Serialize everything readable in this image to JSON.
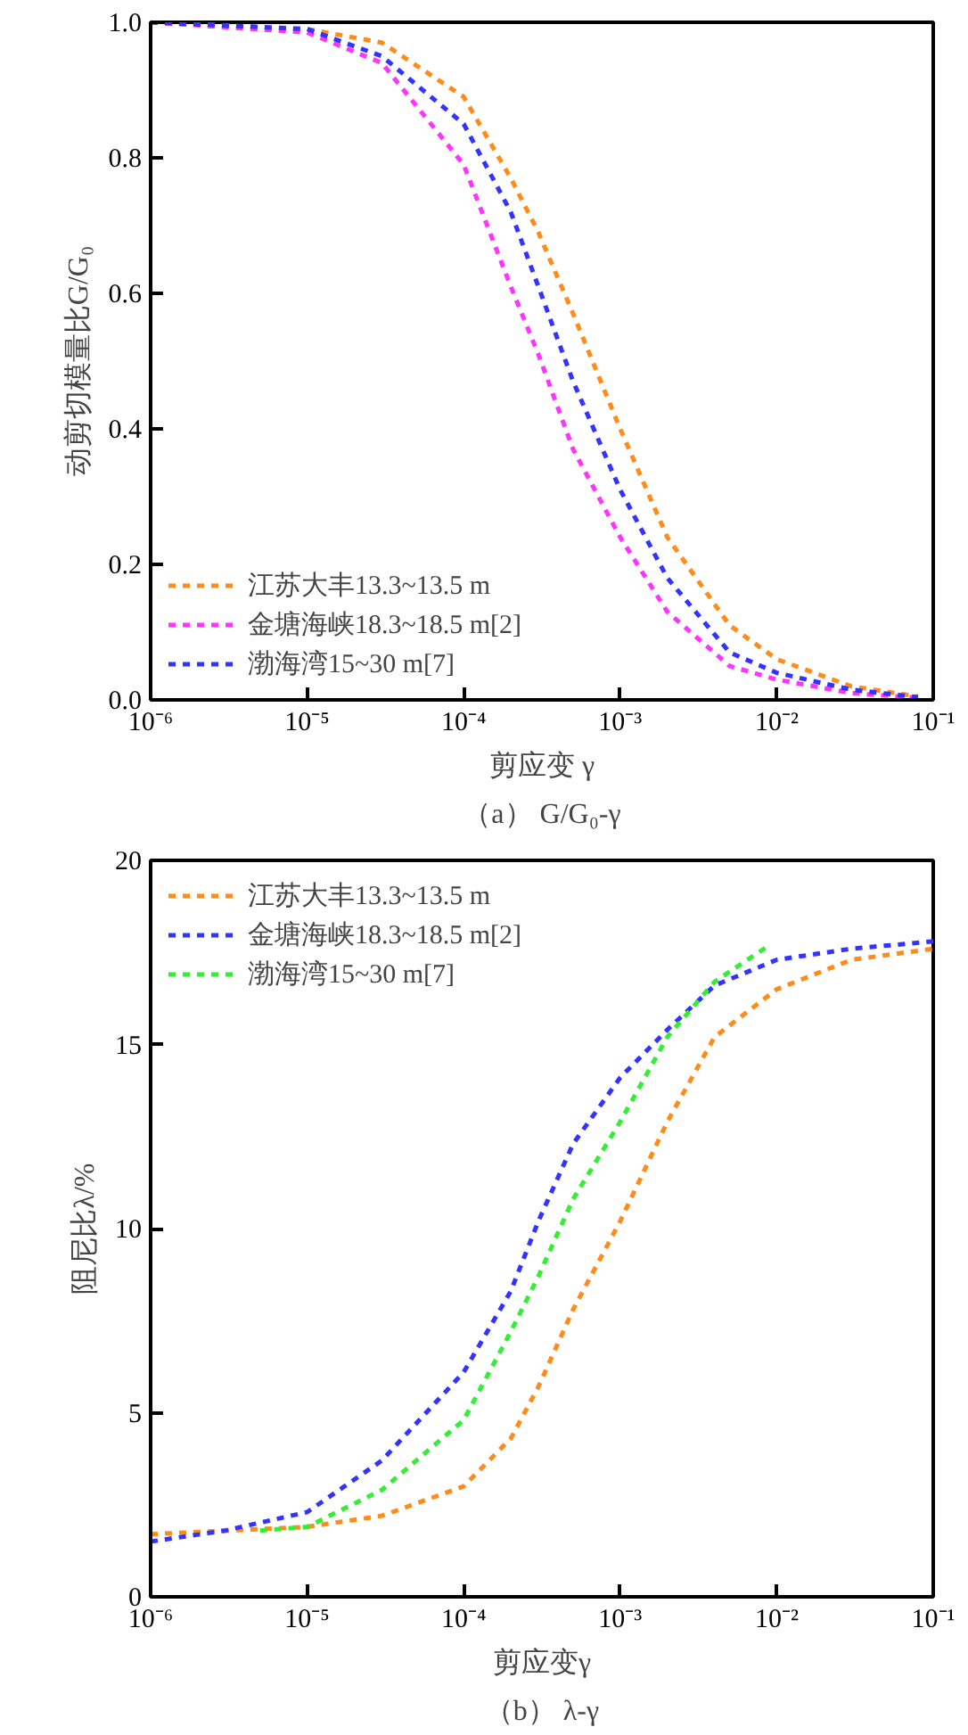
{
  "chart_data": [
    {
      "type": "line",
      "title": "（a） G/G₀-γ",
      "xlabel": "剪应变 γ",
      "ylabel": "动剪切模量比G/G₀",
      "log": "x",
      "grid": false,
      "legend": "bottom left",
      "line_style": "dashed",
      "xlim": [
        1e-06,
        0.1
      ],
      "ylim": [
        0,
        1.0
      ],
      "xticks": [
        {
          "value": 1e-06,
          "label": "10⁻⁶"
        },
        {
          "value": 1e-05,
          "label": "10⁻⁵"
        },
        {
          "value": 0.0001,
          "label": "10⁻⁴"
        },
        {
          "value": 0.001,
          "label": "10⁻³"
        },
        {
          "value": 0.01,
          "label": "10⁻²"
        },
        {
          "value": 0.1,
          "label": "10⁻¹"
        }
      ],
      "yticks": [
        {
          "value": 0,
          "label": "0.0"
        },
        0.2,
        0.4,
        0.6,
        0.8,
        {
          "value": 1,
          "label": "1.0"
        }
      ],
      "series": [
        {
          "name": "江苏大丰13.3~13.5 m",
          "color": "#ff8c1a",
          "x": [
            1e-06,
            1e-05,
            3e-05,
            0.0001,
            0.0002,
            0.0003,
            0.0005,
            0.001,
            0.002,
            0.005,
            0.01,
            0.03,
            0.08
          ],
          "values": [
            1.0,
            0.99,
            0.97,
            0.89,
            0.77,
            0.69,
            0.57,
            0.4,
            0.24,
            0.11,
            0.06,
            0.02,
            0.005
          ]
        },
        {
          "name": "金塘海峡18.3~18.5 m[2]",
          "color": "#ff33ff",
          "x": [
            1e-06,
            1e-05,
            3e-05,
            0.0001,
            0.0002,
            0.0003,
            0.0005,
            0.001,
            0.002,
            0.005,
            0.01,
            0.03,
            0.08
          ],
          "values": [
            1.0,
            0.985,
            0.94,
            0.79,
            0.61,
            0.51,
            0.37,
            0.24,
            0.13,
            0.05,
            0.03,
            0.01,
            0.003
          ]
        },
        {
          "name": "渤海湾15~30 m[7]",
          "color": "#3333ff",
          "x": [
            1e-06,
            1e-05,
            3e-05,
            0.0001,
            0.0002,
            0.0003,
            0.0005,
            0.001,
            0.002,
            0.005,
            0.01,
            0.03,
            0.08
          ],
          "values": [
            1.0,
            0.99,
            0.95,
            0.85,
            0.72,
            0.61,
            0.47,
            0.31,
            0.18,
            0.07,
            0.04,
            0.015,
            0.004
          ]
        }
      ]
    },
    {
      "type": "line",
      "title": "（b） λ-γ",
      "xlabel": "剪应变γ",
      "ylabel": "阻尼比λ/%",
      "log": "x",
      "grid": false,
      "legend": "top left",
      "line_style": "dashed",
      "xlim": [
        1e-06,
        0.1
      ],
      "ylim": [
        0,
        20
      ],
      "xticks": [
        {
          "value": 1e-06,
          "label": "10⁻⁶"
        },
        {
          "value": 1e-05,
          "label": "10⁻⁵"
        },
        {
          "value": 0.0001,
          "label": "10⁻⁴"
        },
        {
          "value": 0.001,
          "label": "10⁻³"
        },
        {
          "value": 0.01,
          "label": "10⁻²"
        },
        {
          "value": 0.1,
          "label": "10⁻¹"
        }
      ],
      "yticks": [
        0,
        5,
        10,
        15,
        20
      ],
      "series": [
        {
          "name": "江苏大丰13.3~13.5 m",
          "color": "#ff8c1a",
          "x": [
            1e-06,
            1e-05,
            3e-05,
            0.0001,
            0.0002,
            0.0003,
            0.0005,
            0.001,
            0.002,
            0.004,
            0.01,
            0.03,
            0.1
          ],
          "values": [
            1.7,
            1.9,
            2.2,
            3.0,
            4.3,
            5.7,
            7.8,
            10.2,
            12.9,
            15.2,
            16.5,
            17.3,
            17.6
          ]
        },
        {
          "name": "金塘海峡18.3~18.5 m[2]",
          "color": "#3333ff",
          "x": [
            1e-06,
            3e-06,
            1e-05,
            3e-05,
            0.0001,
            0.0002,
            0.0003,
            0.0005,
            0.001,
            0.002,
            0.004,
            0.01,
            0.03,
            0.1
          ],
          "values": [
            1.5,
            1.8,
            2.3,
            3.7,
            6.1,
            8.3,
            10.2,
            12.3,
            14.1,
            15.4,
            16.6,
            17.3,
            17.6,
            17.8
          ]
        },
        {
          "name": "渤海湾15~30 m[7]",
          "color": "#33ee33",
          "x": [
            5e-06,
            1e-05,
            3e-05,
            0.0001,
            0.0002,
            0.0003,
            0.0005,
            0.001,
            0.002,
            0.004,
            0.009
          ],
          "values": [
            1.8,
            1.9,
            2.9,
            4.8,
            7.2,
            8.7,
            10.8,
            12.9,
            15.2,
            16.7,
            17.7
          ]
        }
      ]
    }
  ]
}
